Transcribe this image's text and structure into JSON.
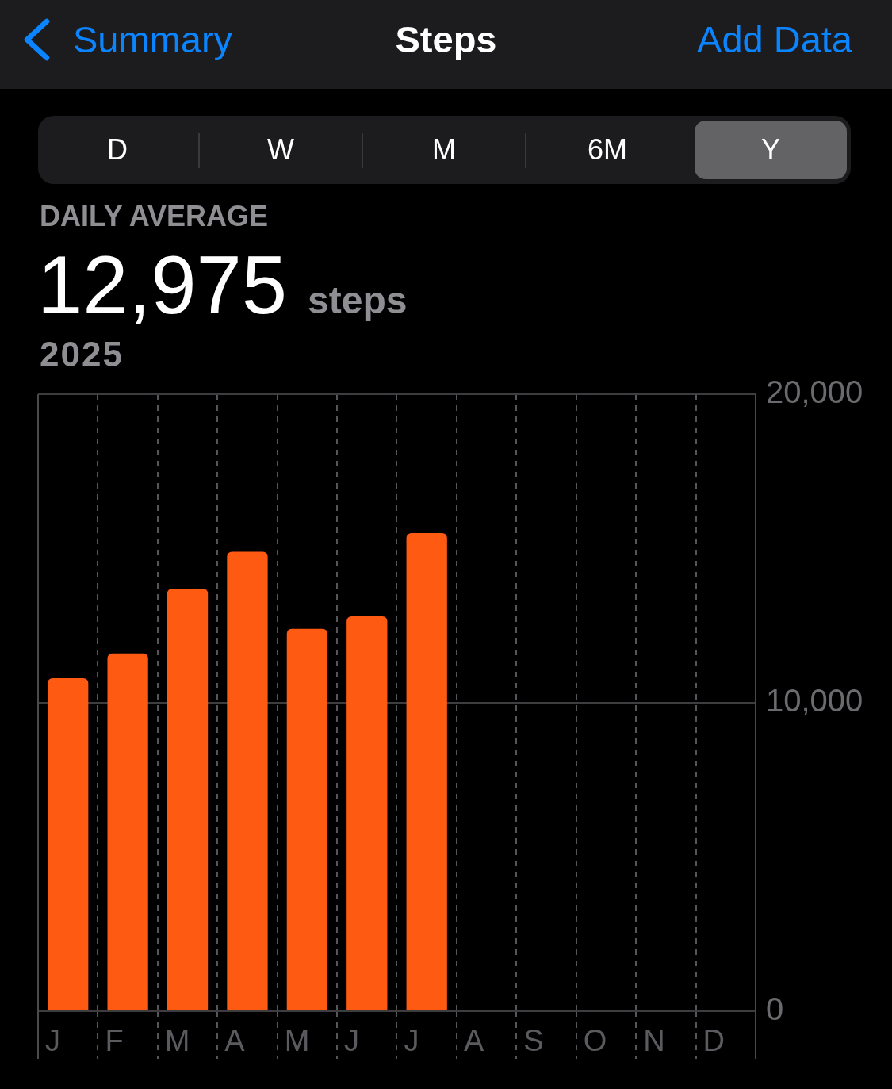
{
  "chart_data": {
    "type": "bar",
    "title": "Steps",
    "annotations": [
      "Summary",
      "Add Data",
      "D",
      "W",
      "M",
      "6M",
      "Y",
      "DAILY AVERAGE",
      "12,975",
      "steps",
      "2025"
    ],
    "categories": [
      "J",
      "F",
      "M",
      "A",
      "M",
      "J",
      "J",
      "A",
      "S",
      "O",
      "N",
      "D"
    ],
    "values": [
      10800,
      11600,
      13700,
      14900,
      12400,
      12800,
      15500,
      null,
      null,
      null,
      null,
      null
    ],
    "color": "#ff5a12",
    "ylim": [
      0,
      20000
    ],
    "yticks": [
      0,
      {
        "value": 10000,
        "label": "10,000"
      },
      {
        "value": 20000,
        "label": "20,000"
      }
    ],
    "grid": true
  }
}
